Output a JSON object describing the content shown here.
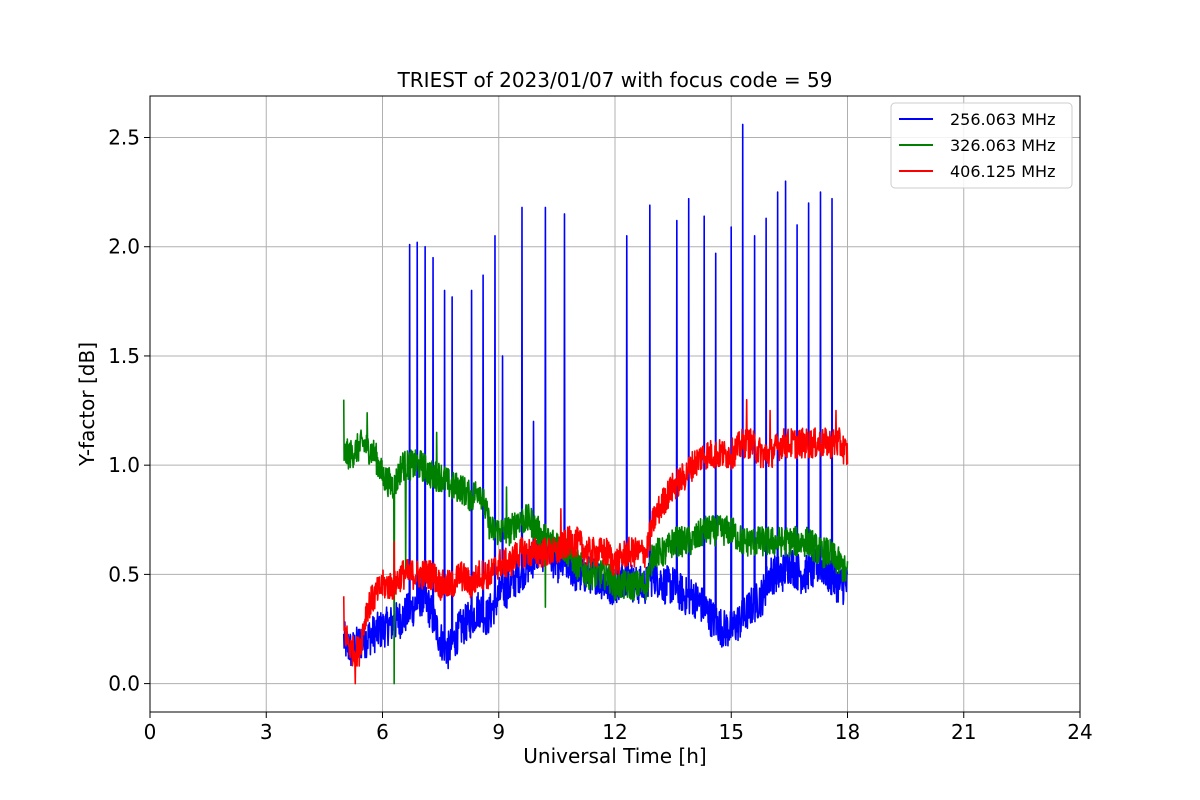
{
  "chart_data": {
    "type": "line",
    "title": "TRIEST of 2023/01/07 with focus code = 59",
    "xlabel": "Universal Time [h]",
    "ylabel": "Y-factor [dB]",
    "xlim": [
      0,
      24
    ],
    "ylim": [
      -0.13,
      2.69
    ],
    "xticks": [
      0,
      3,
      6,
      9,
      12,
      15,
      18,
      21,
      24
    ],
    "yticks": [
      0.0,
      0.5,
      1.0,
      1.5,
      2.0,
      2.5
    ],
    "xtick_labels": [
      "0",
      "3",
      "6",
      "9",
      "12",
      "15",
      "18",
      "21",
      "24"
    ],
    "ytick_labels": [
      "0.0",
      "0.5",
      "1.0",
      "1.5",
      "2.0",
      "2.5"
    ],
    "grid": true,
    "legend_position": "top-right",
    "series": [
      {
        "name": "256.063 MHz",
        "color": "#0000ff",
        "x": [
          5.0,
          5.2,
          5.5,
          6.0,
          6.5,
          6.8,
          7.0,
          7.2,
          7.5,
          7.7,
          8.0,
          8.3,
          8.5,
          8.7,
          9.0,
          9.3,
          9.5,
          9.8,
          10.0,
          10.3,
          10.5,
          10.8,
          11.0,
          11.3,
          11.5,
          11.8,
          12.0,
          12.3,
          12.5,
          12.8,
          13.0,
          13.3,
          13.5,
          13.8,
          14.0,
          14.3,
          14.5,
          14.8,
          15.0,
          15.3,
          15.5,
          15.8,
          16.0,
          16.3,
          16.5,
          16.8,
          17.0,
          17.3,
          17.5,
          17.8,
          18.0
        ],
        "y": [
          0.2,
          0.15,
          0.2,
          0.25,
          0.3,
          0.35,
          0.4,
          0.35,
          0.2,
          0.15,
          0.25,
          0.3,
          0.35,
          0.3,
          0.4,
          0.45,
          0.5,
          0.55,
          0.6,
          0.6,
          0.55,
          0.55,
          0.5,
          0.5,
          0.5,
          0.45,
          0.45,
          0.5,
          0.45,
          0.45,
          0.5,
          0.45,
          0.45,
          0.4,
          0.4,
          0.35,
          0.3,
          0.25,
          0.25,
          0.3,
          0.35,
          0.4,
          0.5,
          0.5,
          0.55,
          0.5,
          0.5,
          0.55,
          0.5,
          0.45,
          0.45
        ],
        "spikes": [
          [
            6.7,
            2.01
          ],
          [
            6.9,
            2.02
          ],
          [
            7.1,
            2.0
          ],
          [
            7.3,
            1.95
          ],
          [
            7.6,
            1.8
          ],
          [
            7.8,
            1.77
          ],
          [
            8.3,
            1.8
          ],
          [
            8.6,
            1.87
          ],
          [
            8.9,
            2.05
          ],
          [
            9.1,
            1.5
          ],
          [
            9.6,
            2.18
          ],
          [
            9.9,
            1.2
          ],
          [
            10.2,
            2.18
          ],
          [
            10.7,
            2.15
          ],
          [
            12.3,
            2.05
          ],
          [
            12.9,
            2.19
          ],
          [
            13.6,
            2.12
          ],
          [
            13.9,
            2.22
          ],
          [
            14.3,
            2.14
          ],
          [
            14.6,
            1.97
          ],
          [
            15.0,
            2.09
          ],
          [
            15.3,
            2.56
          ],
          [
            15.6,
            2.05
          ],
          [
            15.9,
            2.13
          ],
          [
            16.2,
            2.25
          ],
          [
            16.4,
            2.3
          ],
          [
            16.7,
            2.1
          ],
          [
            17.0,
            2.2
          ],
          [
            17.3,
            2.25
          ],
          [
            17.6,
            2.22
          ]
        ]
      },
      {
        "name": "326.063 MHz",
        "color": "#008000",
        "x": [
          5.0,
          5.2,
          5.5,
          5.8,
          6.0,
          6.3,
          6.5,
          6.8,
          7.0,
          7.3,
          7.5,
          7.8,
          8.0,
          8.3,
          8.5,
          8.8,
          9.0,
          9.3,
          9.5,
          9.8,
          10.0,
          10.3,
          10.5,
          10.8,
          11.0,
          11.3,
          11.5,
          11.8,
          12.0,
          12.3,
          12.5,
          12.8,
          13.0,
          13.3,
          13.5,
          13.8,
          14.0,
          14.3,
          14.5,
          14.8,
          15.0,
          15.3,
          15.5,
          15.8,
          16.0,
          16.3,
          16.5,
          16.8,
          17.0,
          17.3,
          17.5,
          17.8,
          18.0
        ],
        "y": [
          1.05,
          1.05,
          1.1,
          1.05,
          0.95,
          0.9,
          1.0,
          1.0,
          1.0,
          0.95,
          0.95,
          0.9,
          0.9,
          0.85,
          0.9,
          0.7,
          0.7,
          0.7,
          0.75,
          0.75,
          0.7,
          0.65,
          0.65,
          0.6,
          0.55,
          0.5,
          0.5,
          0.5,
          0.45,
          0.45,
          0.45,
          0.45,
          0.6,
          0.6,
          0.65,
          0.65,
          0.65,
          0.7,
          0.7,
          0.7,
          0.7,
          0.65,
          0.65,
          0.65,
          0.65,
          0.65,
          0.65,
          0.65,
          0.65,
          0.6,
          0.6,
          0.55,
          0.5
        ],
        "spikes": [
          [
            5.0,
            1.3
          ],
          [
            5.6,
            1.24
          ],
          [
            6.3,
            0.0
          ],
          [
            6.6,
            0.5
          ],
          [
            7.4,
            1.15
          ],
          [
            9.2,
            0.9
          ],
          [
            10.2,
            0.35
          ]
        ]
      },
      {
        "name": "406.125 MHz",
        "color": "#ff0000",
        "x": [
          5.0,
          5.2,
          5.4,
          5.6,
          5.8,
          6.0,
          6.3,
          6.5,
          6.8,
          7.0,
          7.3,
          7.5,
          7.8,
          8.0,
          8.3,
          8.5,
          8.8,
          9.0,
          9.3,
          9.5,
          9.8,
          10.0,
          10.3,
          10.5,
          10.8,
          11.0,
          11.3,
          11.5,
          11.8,
          12.0,
          12.3,
          12.5,
          12.8,
          13.0,
          13.3,
          13.5,
          13.8,
          14.0,
          14.3,
          14.5,
          14.8,
          15.0,
          15.3,
          15.5,
          15.8,
          16.0,
          16.3,
          16.5,
          16.8,
          17.0,
          17.3,
          17.5,
          17.8,
          18.0
        ],
        "y": [
          0.25,
          0.15,
          0.15,
          0.35,
          0.4,
          0.45,
          0.45,
          0.5,
          0.5,
          0.5,
          0.5,
          0.45,
          0.45,
          0.5,
          0.45,
          0.5,
          0.5,
          0.55,
          0.55,
          0.6,
          0.6,
          0.6,
          0.6,
          0.6,
          0.65,
          0.65,
          0.6,
          0.6,
          0.6,
          0.55,
          0.6,
          0.6,
          0.6,
          0.75,
          0.85,
          0.9,
          0.95,
          1.0,
          1.05,
          1.05,
          1.05,
          1.05,
          1.1,
          1.1,
          1.05,
          1.05,
          1.1,
          1.1,
          1.1,
          1.1,
          1.1,
          1.1,
          1.1,
          1.05
        ],
        "spikes": [
          [
            5.0,
            0.4
          ],
          [
            5.3,
            0.0
          ],
          [
            6.3,
            0.65
          ],
          [
            10.6,
            0.8
          ],
          [
            15.4,
            1.3
          ],
          [
            16.0,
            1.25
          ],
          [
            17.7,
            1.25
          ]
        ]
      }
    ]
  }
}
